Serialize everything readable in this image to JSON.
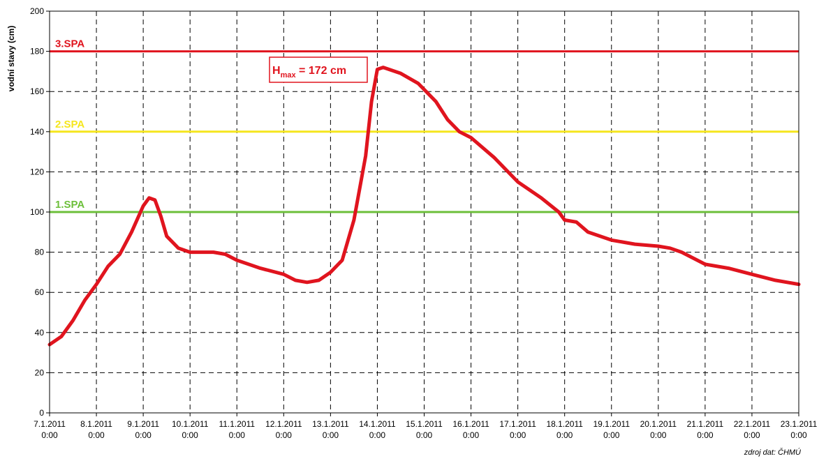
{
  "chart_data": {
    "type": "line",
    "ylabel": "vodní stavy (cm)",
    "xlabel": "",
    "ylim": [
      0,
      200
    ],
    "yticks": [
      0,
      20,
      40,
      60,
      80,
      100,
      120,
      140,
      160,
      180,
      200
    ],
    "grid": true,
    "x_tick_labels": [
      [
        "7.1.2011",
        "0:00"
      ],
      [
        "8.1.2011",
        "0:00"
      ],
      [
        "9.1.2011",
        "0:00"
      ],
      [
        "10.1.2011",
        "0:00"
      ],
      [
        "11.1.2011",
        "0:00"
      ],
      [
        "12.1.2011",
        "0:00"
      ],
      [
        "13.1.2011",
        "0:00"
      ],
      [
        "14.1.2011",
        "0:00"
      ],
      [
        "15.1.2011",
        "0:00"
      ],
      [
        "16.1.2011",
        "0:00"
      ],
      [
        "17.1.2011",
        "0:00"
      ],
      [
        "18.1.2011",
        "0:00"
      ],
      [
        "19.1.2011",
        "0:00"
      ],
      [
        "20.1.2011",
        "0:00"
      ],
      [
        "21.1.2011",
        "0:00"
      ],
      [
        "22.1.2011",
        "0:00"
      ],
      [
        "23.1.2011",
        "0:00"
      ]
    ],
    "thresholds": [
      {
        "label": "3.SPA",
        "value": 180,
        "color": "#e0141e"
      },
      {
        "label": "2.SPA",
        "value": 140,
        "color": "#f5e61e"
      },
      {
        "label": "1.SPA",
        "value": 100,
        "color": "#6cbf3a"
      }
    ],
    "series": [
      {
        "color": "#e0141e",
        "points": [
          [
            "7.1.2011 0:00",
            34
          ],
          [
            "7.1.2011 6:00",
            38
          ],
          [
            "7.1.2011 12:00",
            46
          ],
          [
            "7.1.2011 18:00",
            56
          ],
          [
            "8.1.2011 0:00",
            64
          ],
          [
            "8.1.2011 6:00",
            73
          ],
          [
            "8.1.2011 12:00",
            79
          ],
          [
            "8.1.2011 18:00",
            90
          ],
          [
            "9.1.2011 0:00",
            103
          ],
          [
            "9.1.2011 3:00",
            107
          ],
          [
            "9.1.2011 6:00",
            106
          ],
          [
            "9.1.2011 9:00",
            98
          ],
          [
            "9.1.2011 12:00",
            88
          ],
          [
            "9.1.2011 18:00",
            82
          ],
          [
            "10.1.2011 0:00",
            80
          ],
          [
            "10.1.2011 12:00",
            80
          ],
          [
            "10.1.2011 18:00",
            79
          ],
          [
            "11.1.2011 0:00",
            76
          ],
          [
            "11.1.2011 12:00",
            72
          ],
          [
            "12.1.2011 0:00",
            69
          ],
          [
            "12.1.2011 6:00",
            66
          ],
          [
            "12.1.2011 12:00",
            65
          ],
          [
            "12.1.2011 18:00",
            66
          ],
          [
            "13.1.2011 0:00",
            70
          ],
          [
            "13.1.2011 6:00",
            76
          ],
          [
            "13.1.2011 12:00",
            96
          ],
          [
            "13.1.2011 18:00",
            128
          ],
          [
            "13.1.2011 21:00",
            155
          ],
          [
            "14.1.2011 0:00",
            171
          ],
          [
            "14.1.2011 3:00",
            172
          ],
          [
            "14.1.2011 12:00",
            169
          ],
          [
            "14.1.2011 21:00",
            164
          ],
          [
            "15.1.2011 6:00",
            155
          ],
          [
            "15.1.2011 12:00",
            146
          ],
          [
            "15.1.2011 18:00",
            140
          ],
          [
            "16.1.2011 0:00",
            137
          ],
          [
            "16.1.2011 12:00",
            127
          ],
          [
            "17.1.2011 0:00",
            115
          ],
          [
            "17.1.2011 12:00",
            107
          ],
          [
            "17.1.2011 21:00",
            100
          ],
          [
            "18.1.2011 0:00",
            96
          ],
          [
            "18.1.2011 6:00",
            95
          ],
          [
            "18.1.2011 12:00",
            90
          ],
          [
            "19.1.2011 0:00",
            86
          ],
          [
            "19.1.2011 12:00",
            84
          ],
          [
            "20.1.2011 0:00",
            83
          ],
          [
            "20.1.2011 6:00",
            82
          ],
          [
            "20.1.2011 12:00",
            80
          ],
          [
            "21.1.2011 0:00",
            74
          ],
          [
            "21.1.2011 12:00",
            72
          ],
          [
            "22.1.2011 0:00",
            69
          ],
          [
            "22.1.2011 12:00",
            66
          ],
          [
            "23.1.2011 0:00",
            64
          ]
        ]
      }
    ],
    "annotation": {
      "text_main": "H",
      "text_sub": "max",
      "text_rest": " = 172 cm",
      "color": "#e0141e"
    }
  },
  "source_text": "zdroj dat: ČHMÚ"
}
